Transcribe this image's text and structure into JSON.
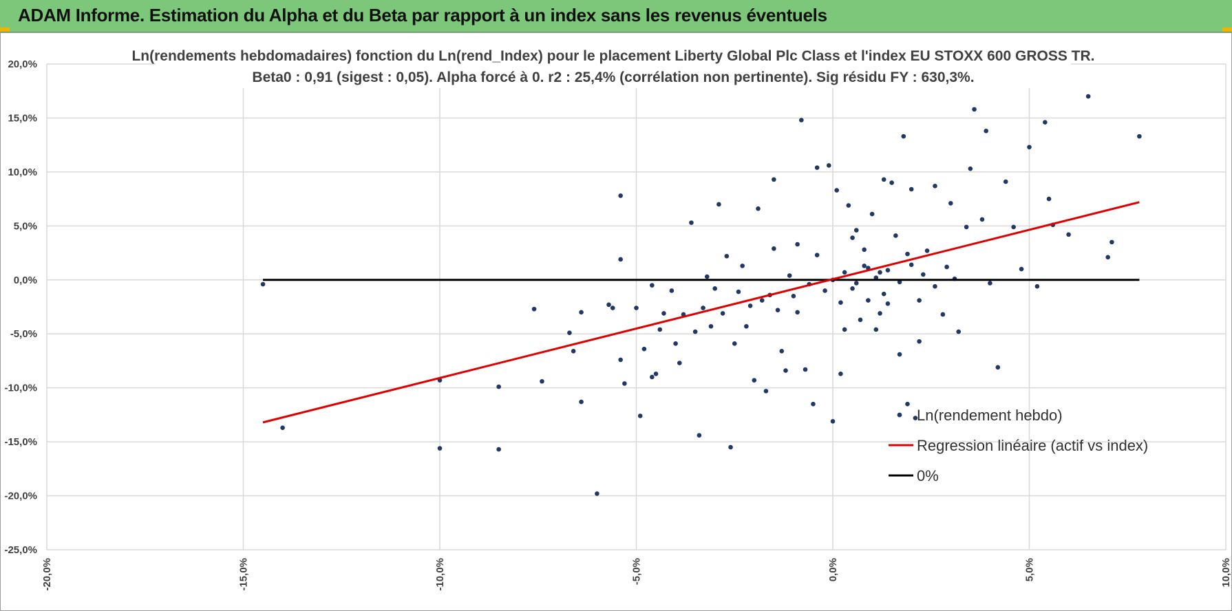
{
  "header": {
    "title": "ADAM Informe. Estimation du Alpha et du Beta par rapport à un index sans les revenus éventuels"
  },
  "colors": {
    "header_bg": "#7dc77a",
    "points": "#203864",
    "regression": "#e00000",
    "zero_line": "#000000",
    "grid": "#d9d9d9"
  },
  "chart_data": {
    "type": "scatter",
    "title_line1": "Ln(rendements hebdomadaires) fonction du Ln(rend_Index) pour le placement Liberty Global Plc Class  et l'index EU STOXX 600 GROSS TR.",
    "title_line2": "Beta0 : 0,91 (sigest : 0,05).  Alpha forcé à 0. r2 : 25,4% (corrélation non pertinente). Sig résidu FY : 630,3%.",
    "xlim": [
      -20,
      10
    ],
    "ylim": [
      -25,
      20
    ],
    "grid": true,
    "legend_position": "bottom-right",
    "x_ticks": [
      "-20,0%",
      "-15,0%",
      "-10,0%",
      "-5,0%",
      "0,0%",
      "5,0%",
      "10,0%"
    ],
    "y_ticks": [
      "20,0%",
      "15,0%",
      "10,0%",
      "5,0%",
      "0,0%",
      "-5,0%",
      "-10,0%",
      "-15,0%",
      "-20,0%",
      "-25,0%"
    ],
    "legend": [
      "Ln(rendement hebdo)",
      "Regression linéaire (actif vs index)",
      "0%"
    ],
    "regression": {
      "name": "Regression linéaire (actif vs index)",
      "slope": 0.91,
      "x": [
        -14.5,
        7.8
      ],
      "y": [
        -13.2,
        7.2
      ]
    },
    "zero_line": {
      "name": "0%",
      "x": [
        -14.5,
        7.8
      ],
      "y": [
        0,
        0
      ]
    },
    "series": [
      {
        "name": "Ln(rendement hebdo)",
        "points": [
          [
            -14.5,
            -0.4
          ],
          [
            -14.0,
            -13.7
          ],
          [
            -10.0,
            -9.3
          ],
          [
            -10.0,
            -15.6
          ],
          [
            -8.5,
            -9.9
          ],
          [
            -8.5,
            -15.7
          ],
          [
            -7.6,
            -2.7
          ],
          [
            -7.4,
            -9.4
          ],
          [
            -6.7,
            -4.9
          ],
          [
            -6.6,
            -6.6
          ],
          [
            -6.4,
            -3.0
          ],
          [
            -6.4,
            -11.3
          ],
          [
            -6.0,
            -19.8
          ],
          [
            -5.7,
            -2.3
          ],
          [
            -5.6,
            -2.6
          ],
          [
            -5.4,
            7.8
          ],
          [
            -5.4,
            1.9
          ],
          [
            -5.4,
            -7.4
          ],
          [
            -5.3,
            -9.6
          ],
          [
            -5.0,
            -2.6
          ],
          [
            -4.9,
            -12.6
          ],
          [
            -4.8,
            -6.4
          ],
          [
            -4.6,
            -0.5
          ],
          [
            -4.6,
            -9.0
          ],
          [
            -4.5,
            -8.7
          ],
          [
            -4.4,
            -4.6
          ],
          [
            -4.3,
            -3.1
          ],
          [
            -4.1,
            -1.0
          ],
          [
            -4.0,
            -5.9
          ],
          [
            -3.9,
            -7.7
          ],
          [
            -3.8,
            -3.2
          ],
          [
            -3.6,
            5.3
          ],
          [
            -3.5,
            -4.8
          ],
          [
            -3.4,
            -14.4
          ],
          [
            -3.3,
            -2.6
          ],
          [
            -3.1,
            -4.3
          ],
          [
            -3.0,
            -0.8
          ],
          [
            -2.9,
            7.0
          ],
          [
            -2.8,
            -3.1
          ],
          [
            -2.7,
            2.2
          ],
          [
            -2.6,
            -15.5
          ],
          [
            -2.5,
            -5.9
          ],
          [
            -2.4,
            -1.1
          ],
          [
            -2.2,
            -4.3
          ],
          [
            -2.0,
            -9.3
          ],
          [
            -1.9,
            6.6
          ],
          [
            -1.8,
            -1.9
          ],
          [
            -1.7,
            -10.3
          ],
          [
            -1.5,
            9.3
          ],
          [
            -1.5,
            2.9
          ],
          [
            -1.4,
            -2.8
          ],
          [
            -1.3,
            -6.6
          ],
          [
            -1.2,
            -8.4
          ],
          [
            -1.0,
            -1.5
          ],
          [
            -0.9,
            -3.0
          ],
          [
            -0.8,
            14.8
          ],
          [
            -0.7,
            -8.3
          ],
          [
            -0.5,
            -11.5
          ],
          [
            -0.4,
            10.4
          ],
          [
            -0.2,
            -1.0
          ],
          [
            -0.1,
            10.6
          ],
          [
            0.0,
            -13.1
          ],
          [
            0.1,
            8.3
          ],
          [
            0.2,
            -8.7
          ],
          [
            0.3,
            -4.6
          ],
          [
            0.4,
            6.9
          ],
          [
            0.5,
            -0.8
          ],
          [
            0.6,
            4.6
          ],
          [
            0.7,
            -3.7
          ],
          [
            0.8,
            1.3
          ],
          [
            0.9,
            -1.9
          ],
          [
            1.0,
            6.1
          ],
          [
            1.1,
            -4.6
          ],
          [
            1.2,
            0.7
          ],
          [
            1.3,
            9.3
          ],
          [
            1.4,
            -2.2
          ],
          [
            1.5,
            9.0
          ],
          [
            1.6,
            4.1
          ],
          [
            1.7,
            -6.9
          ],
          [
            1.8,
            13.3
          ],
          [
            1.9,
            -11.5
          ],
          [
            2.0,
            8.4
          ],
          [
            2.1,
            -12.8
          ],
          [
            2.2,
            -5.7
          ],
          [
            2.4,
            2.7
          ],
          [
            2.6,
            8.7
          ],
          [
            2.8,
            -3.2
          ],
          [
            3.0,
            7.1
          ],
          [
            3.2,
            -4.8
          ],
          [
            3.4,
            4.9
          ],
          [
            3.5,
            10.3
          ],
          [
            3.6,
            15.8
          ],
          [
            3.8,
            5.6
          ],
          [
            3.9,
            13.8
          ],
          [
            4.0,
            -0.3
          ],
          [
            4.2,
            -8.1
          ],
          [
            4.4,
            9.1
          ],
          [
            4.6,
            4.9
          ],
          [
            4.8,
            1.0
          ],
          [
            5.0,
            12.3
          ],
          [
            5.2,
            -0.6
          ],
          [
            5.4,
            14.6
          ],
          [
            5.5,
            7.5
          ],
          [
            5.6,
            5.1
          ],
          [
            6.0,
            4.2
          ],
          [
            6.5,
            17.0
          ],
          [
            7.0,
            2.1
          ],
          [
            7.1,
            3.5
          ],
          [
            7.8,
            13.3
          ],
          [
            -3.2,
            0.3
          ],
          [
            -2.3,
            1.3
          ],
          [
            -1.1,
            0.4
          ],
          [
            -0.6,
            -0.4
          ],
          [
            0.0,
            0.0
          ],
          [
            0.3,
            0.7
          ],
          [
            0.6,
            -0.3
          ],
          [
            0.9,
            1.1
          ],
          [
            1.1,
            0.2
          ],
          [
            1.4,
            0.9
          ],
          [
            1.7,
            -0.2
          ],
          [
            2.0,
            1.4
          ],
          [
            2.3,
            0.5
          ],
          [
            2.6,
            -0.6
          ],
          [
            2.9,
            1.2
          ],
          [
            3.1,
            0.1
          ],
          [
            -0.4,
            2.3
          ],
          [
            0.2,
            -2.1
          ],
          [
            0.8,
            2.8
          ],
          [
            1.3,
            -1.3
          ],
          [
            1.9,
            2.4
          ],
          [
            -1.6,
            -1.4
          ],
          [
            -2.1,
            -2.4
          ],
          [
            -0.9,
            3.3
          ],
          [
            0.5,
            3.9
          ],
          [
            1.2,
            -3.1
          ],
          [
            2.2,
            -1.9
          ]
        ]
      }
    ]
  }
}
